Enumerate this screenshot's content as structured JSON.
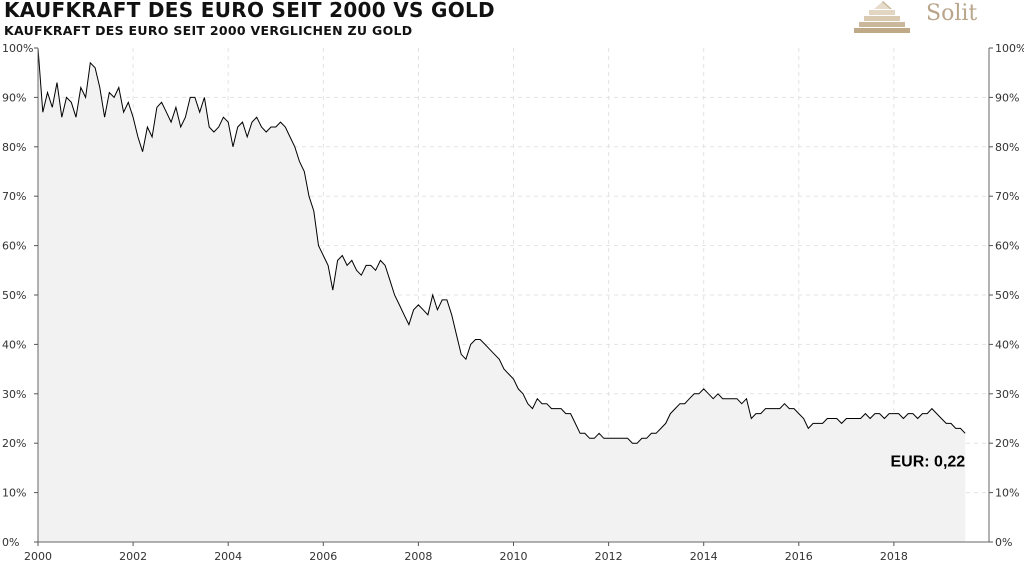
{
  "header": {
    "title": "KAUFKRAFT DES EURO SEIT 2000 VS GOLD",
    "subtitle": "KAUFKRAFT DES EURO SEIT 2000 VERGLICHEN ZU GOLD"
  },
  "logo": {
    "text": "Solit",
    "icon": "pyramid-icon",
    "color": "#b9a58a"
  },
  "chart_data": {
    "type": "area",
    "title": "KAUFKRAFT DES EURO SEIT 2000 VS GOLD",
    "subtitle": "KAUFKRAFT DES EURO SEIT 2000 VERGLICHEN ZU GOLD",
    "xlabel": "",
    "ylabel": "",
    "xlim": [
      2000,
      2020
    ],
    "ylim": [
      0,
      100
    ],
    "y_unit": "%",
    "grid": true,
    "legend": "none",
    "x_ticks": [
      "2000",
      "2002",
      "2004",
      "2006",
      "2008",
      "2010",
      "2012",
      "2014",
      "2016",
      "2018"
    ],
    "y_ticks_left": [
      "0%",
      "10%",
      "20%",
      "30%",
      "40%",
      "50%",
      "60%",
      "70%",
      "80%",
      "90%",
      "100%"
    ],
    "y_ticks_right": [
      "0%",
      "10%",
      "20%",
      "30%",
      "40%",
      "50%",
      "60%",
      "70%",
      "80%",
      "90%",
      "100%"
    ],
    "annotation": "EUR: 0,22",
    "line_color": "#000000",
    "fill_color": "#f2f2f2",
    "series": [
      {
        "x": [
          2000.0,
          2000.1,
          2000.2,
          2000.3,
          2000.4,
          2000.5,
          2000.6,
          2000.7,
          2000.8,
          2000.9,
          2001.0,
          2001.1,
          2001.2,
          2001.3,
          2001.4,
          2001.5,
          2001.6,
          2001.7,
          2001.8,
          2001.9,
          2002.0,
          2002.1,
          2002.2,
          2002.3,
          2002.4,
          2002.5,
          2002.6,
          2002.7,
          2002.8,
          2002.9,
          2003.0,
          2003.1,
          2003.2,
          2003.3,
          2003.4,
          2003.5,
          2003.6,
          2003.7,
          2003.8,
          2003.9,
          2004.0,
          2004.1,
          2004.2,
          2004.3,
          2004.4,
          2004.5,
          2004.6,
          2004.7,
          2004.8,
          2004.9,
          2005.0,
          2005.1,
          2005.2,
          2005.3,
          2005.4,
          2005.5,
          2005.6,
          2005.7,
          2005.8,
          2005.9,
          2006.0,
          2006.1,
          2006.2,
          2006.3,
          2006.4,
          2006.5,
          2006.6,
          2006.7,
          2006.8,
          2006.9,
          2007.0,
          2007.1,
          2007.2,
          2007.3,
          2007.4,
          2007.5,
          2007.6,
          2007.7,
          2007.8,
          2007.9,
          2008.0,
          2008.1,
          2008.2,
          2008.3,
          2008.4,
          2008.5,
          2008.6,
          2008.7,
          2008.8,
          2008.9,
          2009.0,
          2009.1,
          2009.2,
          2009.3,
          2009.4,
          2009.5,
          2009.6,
          2009.7,
          2009.8,
          2009.9,
          2010.0,
          2010.1,
          2010.2,
          2010.3,
          2010.4,
          2010.5,
          2010.6,
          2010.7,
          2010.8,
          2010.9,
          2011.0,
          2011.1,
          2011.2,
          2011.3,
          2011.4,
          2011.5,
          2011.6,
          2011.7,
          2011.8,
          2011.9,
          2012.0,
          2012.1,
          2012.2,
          2012.3,
          2012.4,
          2012.5,
          2012.6,
          2012.7,
          2012.8,
          2012.9,
          2013.0,
          2013.1,
          2013.2,
          2013.3,
          2013.4,
          2013.5,
          2013.6,
          2013.7,
          2013.8,
          2013.9,
          2014.0,
          2014.1,
          2014.2,
          2014.3,
          2014.4,
          2014.5,
          2014.6,
          2014.7,
          2014.8,
          2014.9,
          2015.0,
          2015.1,
          2015.2,
          2015.3,
          2015.4,
          2015.5,
          2015.6,
          2015.7,
          2015.8,
          2015.9,
          2016.0,
          2016.1,
          2016.2,
          2016.3,
          2016.4,
          2016.5,
          2016.6,
          2016.7,
          2016.8,
          2016.9,
          2017.0,
          2017.1,
          2017.2,
          2017.3,
          2017.4,
          2017.5,
          2017.6,
          2017.7,
          2017.8,
          2017.9,
          2018.0,
          2018.1,
          2018.2,
          2018.3,
          2018.4,
          2018.5,
          2018.6,
          2018.7,
          2018.8,
          2018.9,
          2019.0,
          2019.1,
          2019.2,
          2019.3,
          2019.4,
          2019.5
        ],
        "y": [
          100,
          87,
          91,
          88,
          93,
          86,
          90,
          89,
          86,
          92,
          90,
          97,
          96,
          92,
          86,
          91,
          90,
          92,
          87,
          89,
          86,
          82,
          79,
          84,
          82,
          88,
          89,
          87,
          85,
          88,
          84,
          86,
          90,
          90,
          87,
          90,
          84,
          83,
          84,
          86,
          85,
          80,
          84,
          85,
          82,
          85,
          86,
          84,
          83,
          84,
          84,
          85,
          84,
          82,
          80,
          77,
          75,
          70,
          67,
          60,
          58,
          56,
          51,
          57,
          58,
          56,
          57,
          55,
          54,
          56,
          56,
          55,
          57,
          56,
          53,
          50,
          48,
          46,
          44,
          47,
          48,
          47,
          46,
          50,
          47,
          49,
          49,
          46,
          42,
          38,
          37,
          40,
          41,
          41,
          40,
          39,
          38,
          37,
          35,
          34,
          33,
          31,
          30,
          28,
          27,
          29,
          28,
          28,
          27,
          27,
          27,
          26,
          26,
          24,
          22,
          22,
          21,
          21,
          22,
          21,
          21,
          21,
          21,
          21,
          21,
          20,
          20,
          21,
          21,
          22,
          22,
          23,
          24,
          26,
          27,
          28,
          28,
          29,
          30,
          30,
          31,
          30,
          29,
          30,
          29,
          29,
          29,
          29,
          28,
          29,
          25,
          26,
          26,
          27,
          27,
          27,
          27,
          28,
          27,
          27,
          26,
          25,
          23,
          24,
          24,
          24,
          25,
          25,
          25,
          24,
          25,
          25,
          25,
          25,
          26,
          25,
          26,
          26,
          25,
          26,
          26,
          26,
          25,
          26,
          26,
          25,
          26,
          26,
          27,
          26,
          25,
          24,
          24,
          23,
          23,
          22
        ]
      }
    ]
  }
}
